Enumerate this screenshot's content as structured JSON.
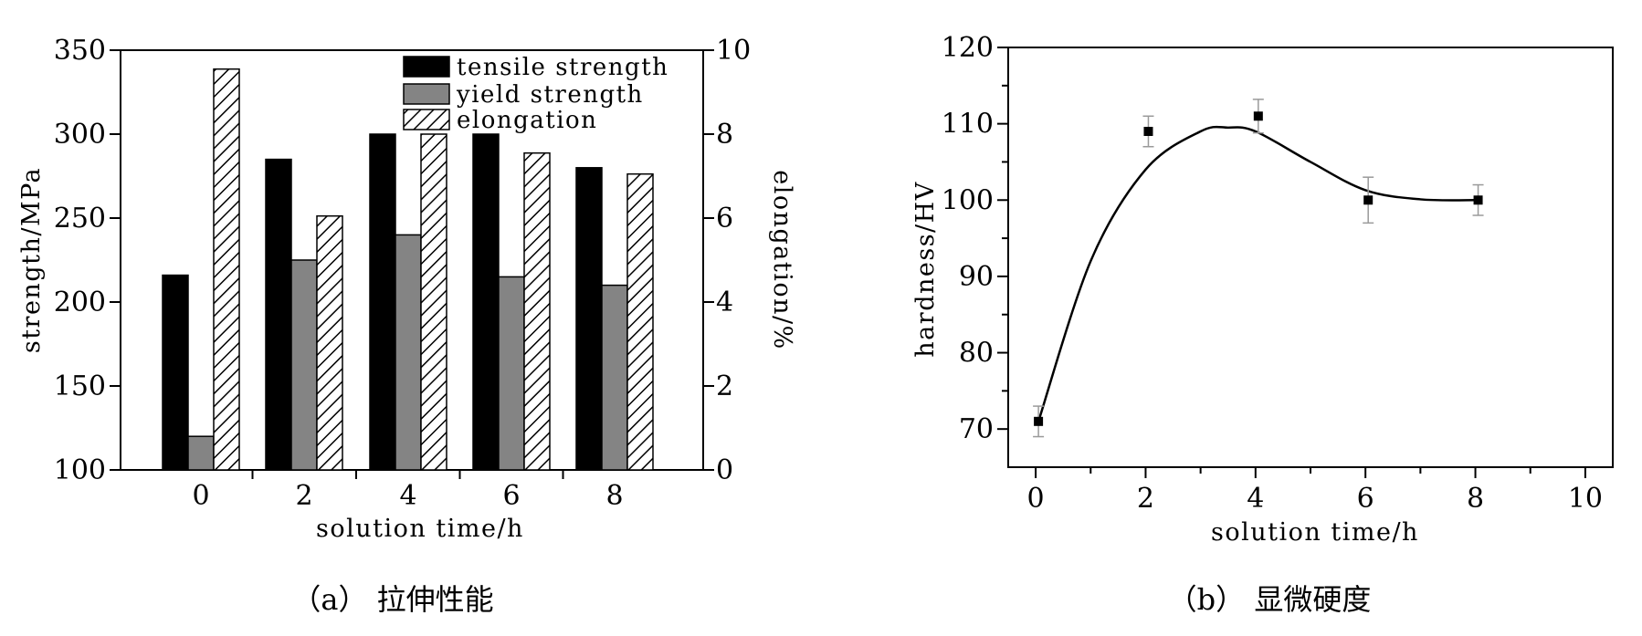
{
  "colors": {
    "tensile": "#000000",
    "yield": "#848484",
    "hatch": "#000000",
    "marker": "#000000"
  },
  "chart_data": [
    {
      "panel_caption": "（a） 拉伸性能",
      "type": "bar",
      "xlabel": "solution time/h",
      "ylabel_left": "strength/MPa",
      "ylabel_right": "elongation/%",
      "categories": [
        "0",
        "2",
        "4",
        "6",
        "8"
      ],
      "ylim_left": [
        100,
        350
      ],
      "yticks_left": [
        100,
        150,
        200,
        250,
        300,
        350
      ],
      "ylim_right": [
        0,
        10
      ],
      "yticks_right": [
        0,
        2,
        4,
        6,
        8,
        10
      ],
      "legend_position": "top-right",
      "series": [
        {
          "name": "tensile strength",
          "axis": "left",
          "style": "solid-black",
          "values": [
            216,
            285,
            300,
            300,
            280
          ]
        },
        {
          "name": "yield strength",
          "axis": "left",
          "style": "solid-gray",
          "values": [
            120,
            225,
            240,
            215,
            210
          ]
        },
        {
          "name": "elongation",
          "axis": "right",
          "style": "hatched",
          "values": [
            9.55,
            6.05,
            8.0,
            7.55,
            7.05
          ]
        }
      ]
    },
    {
      "panel_caption": "（b） 显微硬度",
      "type": "scatter",
      "xlabel": "solution time/h",
      "ylabel": "hardness/HV",
      "xlim": [
        -0.5,
        10.5
      ],
      "xticks": [
        0,
        2,
        4,
        6,
        8,
        10
      ],
      "ylim": [
        65,
        120
      ],
      "yticks": [
        70,
        80,
        90,
        100,
        110,
        120
      ],
      "points": [
        {
          "x": 0.05,
          "y": 71,
          "err": 2
        },
        {
          "x": 2.05,
          "y": 109,
          "err": 2
        },
        {
          "x": 4.05,
          "y": 111,
          "err": 2.2
        },
        {
          "x": 6.05,
          "y": 100,
          "err": 3
        },
        {
          "x": 8.05,
          "y": 100,
          "err": 2
        }
      ],
      "fit_curve": {
        "x": [
          0.05,
          1.0,
          2.0,
          3.0,
          3.5,
          4.0,
          5.0,
          6.0,
          7.0,
          8.05
        ],
        "y": [
          71,
          92,
          104,
          109,
          109.5,
          109,
          105,
          101.3,
          100.1,
          100
        ]
      }
    }
  ]
}
